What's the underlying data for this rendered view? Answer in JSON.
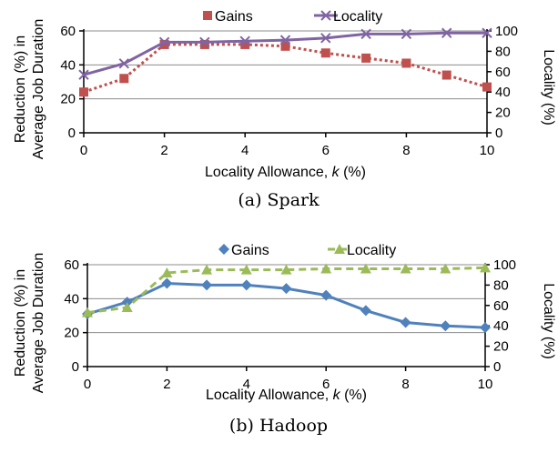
{
  "chart_data": [
    {
      "type": "line",
      "id": "spark",
      "caption": "(a) Spark",
      "xlabel": "Locality Allowance, ",
      "xlabel_var": "k",
      "xlabel_unit": " (%)",
      "ylabel_lines": [
        "Reduction (%) in",
        "Average Job Duration"
      ],
      "y2label": "Locality (%)",
      "x": [
        0,
        1,
        2,
        3,
        4,
        5,
        6,
        7,
        8,
        9,
        10
      ],
      "xticks": [
        "0",
        "2",
        "4",
        "6",
        "8",
        "10"
      ],
      "xlim": [
        0,
        10
      ],
      "ylim": [
        0,
        60
      ],
      "yticks": [
        "0",
        "20",
        "40",
        "60"
      ],
      "y2lim": [
        0,
        100
      ],
      "y2ticks": [
        "0",
        "20",
        "40",
        "60",
        "80",
        "100"
      ],
      "grid": true,
      "legend_position": "top",
      "series": [
        {
          "name": "Gains",
          "axis": "left",
          "color": "#c0504d",
          "marker": "square",
          "dash": "dotted",
          "values": [
            24,
            32,
            52,
            52,
            52,
            51,
            47,
            44,
            41,
            34,
            27
          ]
        },
        {
          "name": "Locality",
          "axis": "right",
          "color": "#8064a2",
          "marker": "x",
          "dash": "solid",
          "values": [
            57,
            68,
            89,
            89,
            90,
            91,
            93,
            97,
            97,
            98,
            98
          ]
        }
      ]
    },
    {
      "type": "line",
      "id": "hadoop",
      "caption": "(b) Hadoop",
      "xlabel": "Locality Allowance, ",
      "xlabel_var": "k",
      "xlabel_unit": " (%)",
      "ylabel_lines": [
        "Reduction (%) in",
        "Average Job Duration"
      ],
      "y2label": "Locality (%)",
      "x": [
        0,
        1,
        2,
        3,
        4,
        5,
        6,
        7,
        8,
        9,
        10
      ],
      "xticks": [
        "0",
        "2",
        "4",
        "6",
        "8",
        "10"
      ],
      "xlim": [
        0,
        10
      ],
      "ylim": [
        0,
        60
      ],
      "yticks": [
        "0",
        "20",
        "40",
        "60"
      ],
      "y2lim": [
        0,
        100
      ],
      "y2ticks": [
        "0",
        "20",
        "40",
        "60",
        "80",
        "100"
      ],
      "grid": true,
      "legend_position": "top",
      "series": [
        {
          "name": "Gains",
          "axis": "left",
          "color": "#4f81bd",
          "marker": "diamond",
          "dash": "solid",
          "values": [
            31,
            38,
            49,
            48,
            48,
            46,
            42,
            33,
            26,
            24,
            23
          ]
        },
        {
          "name": "Locality",
          "axis": "right",
          "color": "#9bbb59",
          "marker": "triangle",
          "dash": "dashed",
          "values": [
            53,
            58,
            92,
            95,
            95,
            95,
            96,
            96,
            96,
            96,
            97
          ]
        }
      ]
    }
  ]
}
